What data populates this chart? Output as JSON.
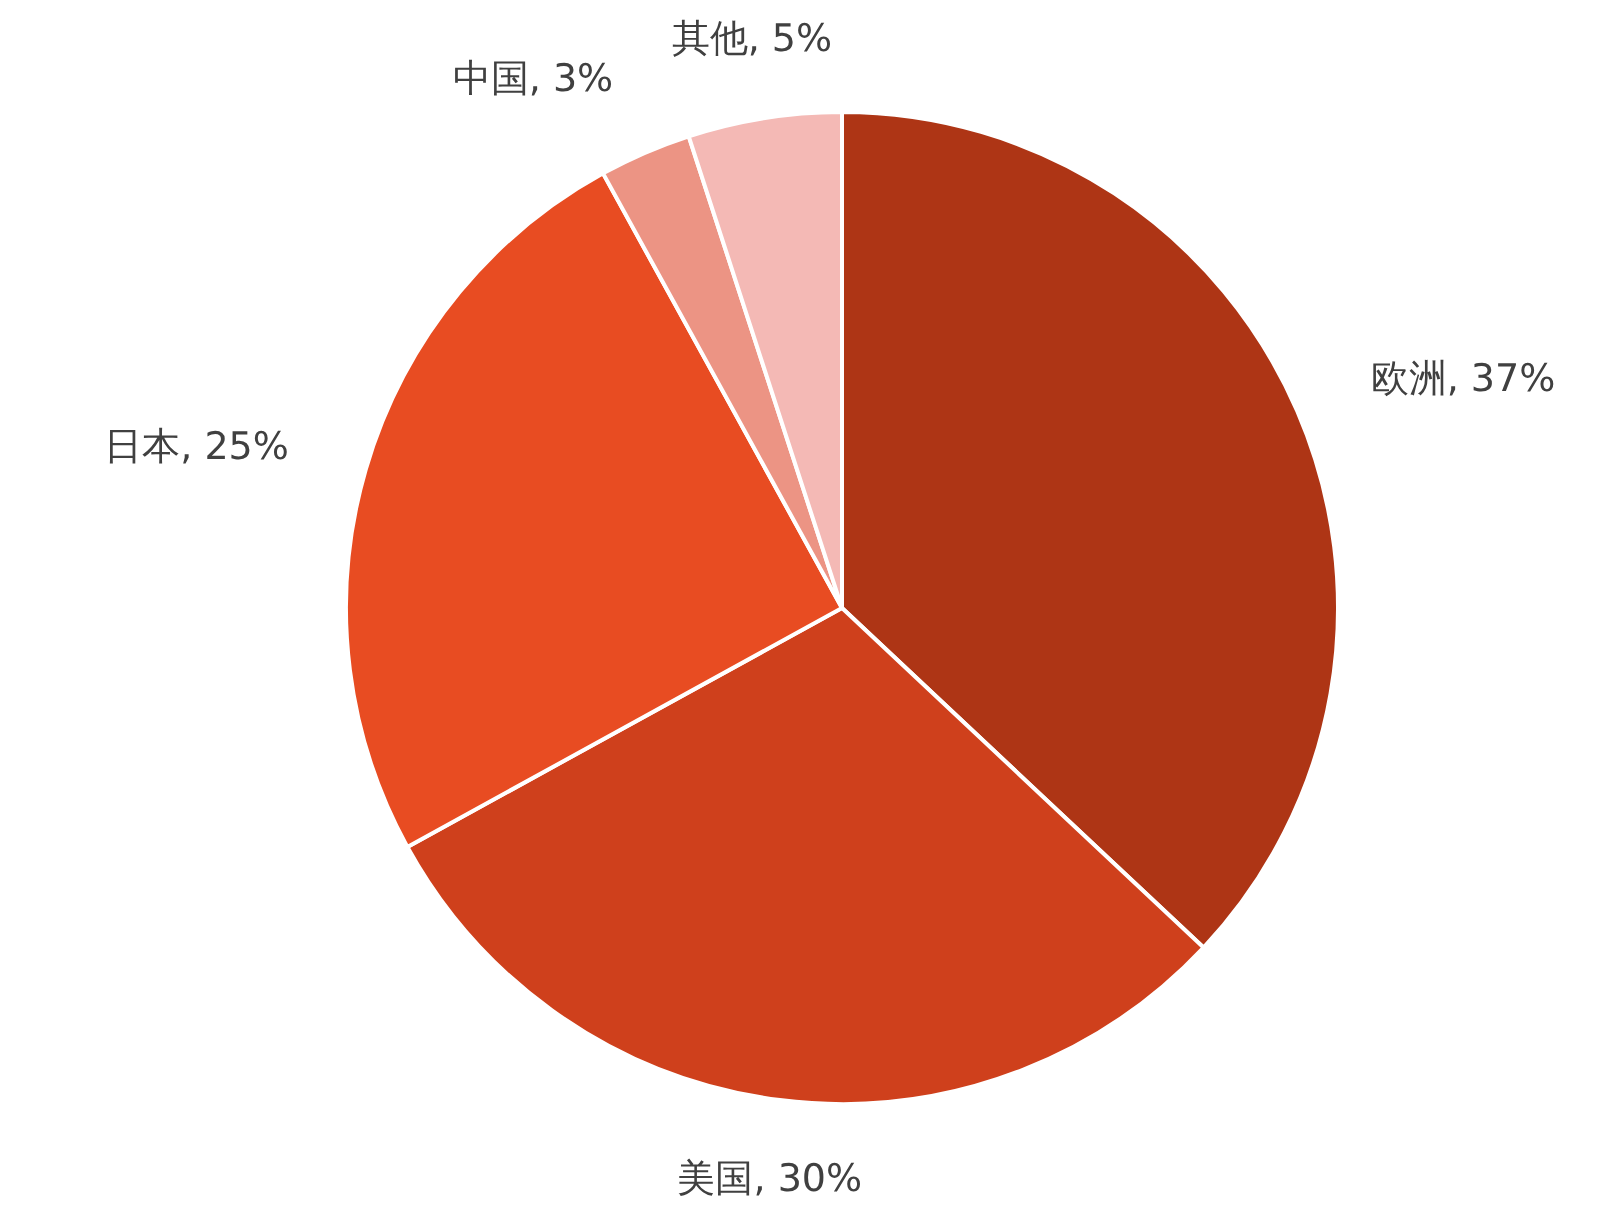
{
  "chart_data": {
    "type": "pie",
    "categories": [
      "欧洲",
      "美国",
      "日本",
      "中国",
      "其他"
    ],
    "values": [
      37,
      30,
      25,
      3,
      5
    ],
    "colors": [
      "#ae3515",
      "#cf401c",
      "#e84c22",
      "#ec9484",
      "#f4b9b5"
    ],
    "value_labels": [
      "37%",
      "30%",
      "25%",
      "3%",
      "5%"
    ]
  }
}
